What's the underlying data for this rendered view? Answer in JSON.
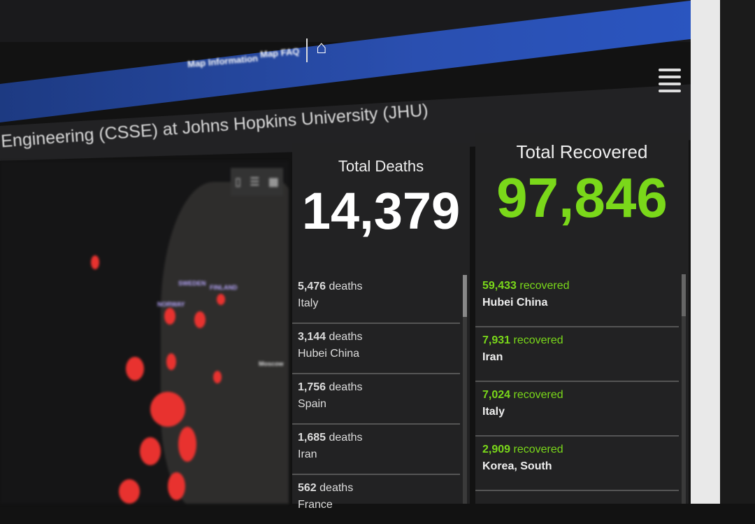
{
  "nav": {
    "items": [
      "Map Information",
      "Map FAQ"
    ],
    "home_icon": "home-icon"
  },
  "header": {
    "title": "Engineering (CSSE) at Johns Hopkins University (JHU)",
    "menu_icon": "hamburger-icon"
  },
  "map": {
    "labels": [
      "SWEDEN",
      "FINLAND",
      "NORWAY",
      "Moscow"
    ]
  },
  "deaths": {
    "title": "Total Deaths",
    "total": "14,379",
    "items": [
      {
        "count": "5,476",
        "unit": "deaths",
        "place": "Italy"
      },
      {
        "count": "3,144",
        "unit": "deaths",
        "place": "Hubei China"
      },
      {
        "count": "1,756",
        "unit": "deaths",
        "place": "Spain"
      },
      {
        "count": "1,685",
        "unit": "deaths",
        "place": "Iran"
      },
      {
        "count": "562",
        "unit": "deaths",
        "place": "France"
      }
    ]
  },
  "recovered": {
    "title": "Total Recovered",
    "total": "97,846",
    "items": [
      {
        "count": "59,433",
        "unit": "recovered",
        "place": "Hubei China"
      },
      {
        "count": "7,931",
        "unit": "recovered",
        "place": "Iran"
      },
      {
        "count": "7,024",
        "unit": "recovered",
        "place": "Italy"
      },
      {
        "count": "2,909",
        "unit": "recovered",
        "place": "Korea, South"
      }
    ]
  },
  "colors": {
    "nav": "#2a4fb0",
    "recovered": "#7ad81a",
    "cases": "#e8322f"
  }
}
